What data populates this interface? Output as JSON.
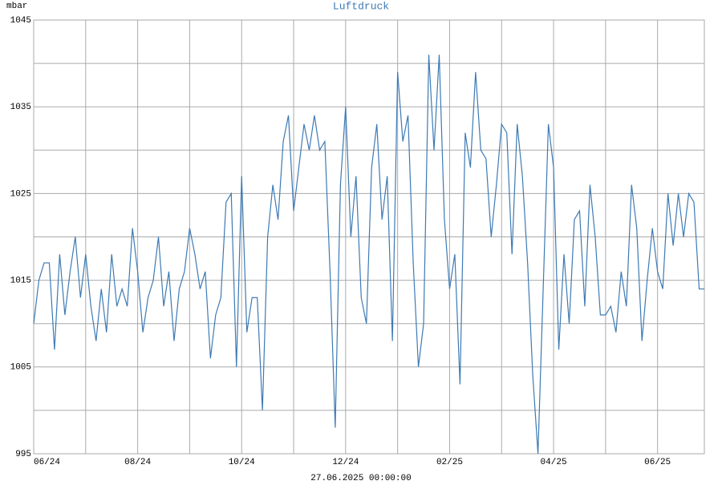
{
  "chart_data": {
    "type": "line",
    "title": "Luftdruck",
    "y_label": "mbar",
    "footer": "27.06.2025 00:00:00",
    "series": [
      {
        "name": "Luftdruck",
        "color": "#3d7ab4",
        "x": [
          0,
          0.1,
          0.2,
          0.3,
          0.4,
          0.5,
          0.6,
          0.7,
          0.8,
          0.9,
          1,
          1.1,
          1.2,
          1.3,
          1.4,
          1.5,
          1.6,
          1.7,
          1.8,
          1.9,
          2,
          2.1,
          2.2,
          2.3,
          2.4,
          2.5,
          2.6,
          2.7,
          2.8,
          2.9,
          3,
          3.1,
          3.2,
          3.3,
          3.4,
          3.5,
          3.6,
          3.7,
          3.8,
          3.9,
          4,
          4.1,
          4.2,
          4.3,
          4.4,
          4.5,
          4.6,
          4.7,
          4.8,
          4.9,
          5,
          5.1,
          5.2,
          5.3,
          5.4,
          5.5,
          5.6,
          5.7,
          5.8,
          5.9,
          6,
          6.1,
          6.2,
          6.3,
          6.4,
          6.5,
          6.6,
          6.7,
          6.8,
          6.9,
          7,
          7.1,
          7.2,
          7.3,
          7.4,
          7.5,
          7.6,
          7.7,
          7.8,
          7.9,
          8,
          8.1,
          8.2,
          8.3,
          8.4,
          8.5,
          8.6,
          8.7,
          8.8,
          8.9,
          9,
          9.1,
          9.2,
          9.3,
          9.4,
          9.5,
          9.6,
          9.7,
          9.8,
          9.9,
          10,
          10.1,
          10.2,
          10.3,
          10.4,
          10.5,
          10.6,
          10.7,
          10.8,
          10.9,
          11,
          11.1,
          11.2,
          11.3,
          11.4,
          11.5,
          11.6,
          11.7,
          11.8,
          11.9,
          12,
          12.1,
          12.2,
          12.3,
          12.4,
          12.5,
          12.6,
          12.7,
          12.8,
          12.9
        ],
        "values": [
          1010,
          1015,
          1017,
          1017,
          1007,
          1018,
          1011,
          1016,
          1020,
          1013,
          1018,
          1012,
          1008,
          1014,
          1009,
          1018,
          1012,
          1014,
          1012,
          1021,
          1016,
          1009,
          1013,
          1015,
          1020,
          1012,
          1016,
          1008,
          1014,
          1016,
          1021,
          1018,
          1014,
          1016,
          1006,
          1011,
          1013,
          1024,
          1025,
          1005,
          1027,
          1009,
          1013,
          1013,
          1000,
          1020,
          1026,
          1022,
          1031,
          1034,
          1023,
          1028,
          1033,
          1030,
          1034,
          1030,
          1031,
          1016,
          998,
          1026,
          1035,
          1020,
          1027,
          1013,
          1010,
          1028,
          1033,
          1022,
          1027,
          1008,
          1039,
          1031,
          1034,
          1017,
          1005,
          1010,
          1041,
          1030,
          1041,
          1022,
          1014,
          1018,
          1003,
          1032,
          1028,
          1039,
          1030,
          1029,
          1020,
          1026,
          1033,
          1032,
          1018,
          1033,
          1027,
          1017,
          1004,
          995,
          1014,
          1033,
          1028,
          1007,
          1018,
          1010,
          1022,
          1023,
          1012,
          1026,
          1020,
          1011,
          1011,
          1012,
          1009,
          1016,
          1012,
          1026,
          1021,
          1008,
          1015,
          1021,
          1016,
          1014,
          1025,
          1019,
          1025,
          1020,
          1025,
          1024,
          1014,
          1014
        ]
      }
    ],
    "xlim": [
      0,
      12.9
    ],
    "xticks": [
      {
        "value": 0,
        "label": "06/24"
      },
      {
        "value": 2,
        "label": "08/24"
      },
      {
        "value": 4,
        "label": "10/24"
      },
      {
        "value": 6,
        "label": "12/24"
      },
      {
        "value": 8,
        "label": "02/25"
      },
      {
        "value": 10,
        "label": "04/25"
      },
      {
        "value": 12,
        "label": "06/25"
      }
    ],
    "minor_xticks": [
      1,
      3,
      5,
      7,
      9,
      11
    ],
    "ylim": [
      995,
      1045
    ],
    "yticks": [
      995,
      1005,
      1015,
      1025,
      1035,
      1045
    ],
    "minor_yticks": [
      1000,
      1010,
      1020,
      1030,
      1040
    ],
    "grid": true
  }
}
